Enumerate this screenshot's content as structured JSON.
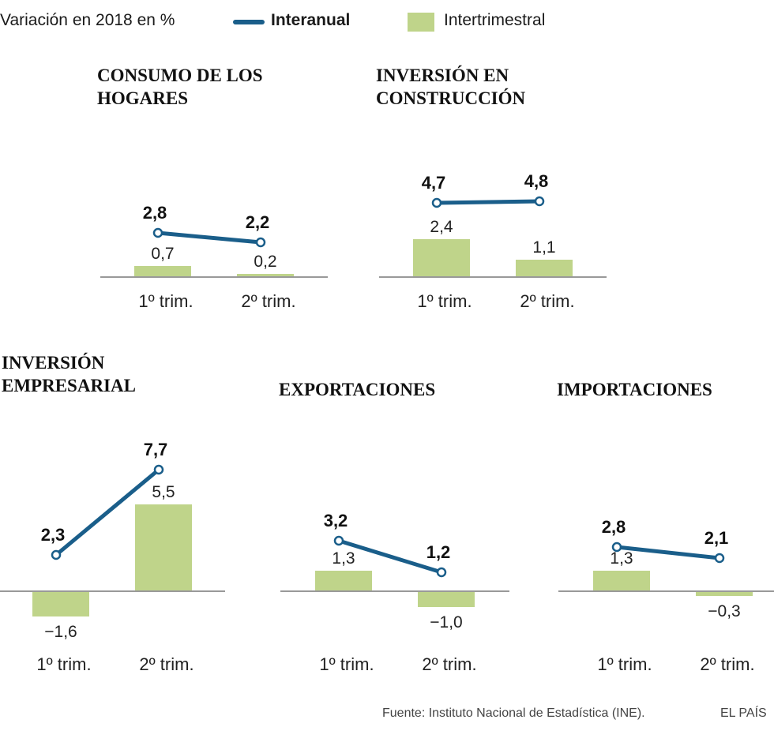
{
  "subtitle": "Variación en 2018 en %",
  "legend": {
    "line_label": "Interanual",
    "bar_label": "Intertrimestral",
    "line_color": "#1a5e8a",
    "bar_color": "#bfd48a"
  },
  "footer": {
    "source": "Fuente: Instituto Nacional de Estadística (INE).",
    "brand": "EL PAÍS"
  },
  "chart_data": [
    {
      "type": "bar",
      "title": [
        "CONSUMO DE LOS",
        "HOGARES"
      ],
      "categories": [
        "1º trim.",
        "2º trim."
      ],
      "series": [
        {
          "name": "Interanual",
          "type": "line",
          "values": [
            2.8,
            2.2
          ],
          "labels": [
            "2,8",
            "2,2"
          ]
        },
        {
          "name": "Intertrimestral",
          "type": "bar",
          "values": [
            0.7,
            0.2
          ],
          "labels": [
            "0,7",
            "0,2"
          ]
        }
      ]
    },
    {
      "type": "bar",
      "title": [
        "INVERSIÓN EN",
        "CONSTRUCCIÓN"
      ],
      "categories": [
        "1º trim.",
        "2º trim."
      ],
      "series": [
        {
          "name": "Interanual",
          "type": "line",
          "values": [
            4.7,
            4.8
          ],
          "labels": [
            "4,7",
            "4,8"
          ]
        },
        {
          "name": "Intertrimestral",
          "type": "bar",
          "values": [
            2.4,
            1.1
          ],
          "labels": [
            "2,4",
            "1,1"
          ]
        }
      ]
    },
    {
      "type": "bar",
      "title": [
        "INVERSIÓN",
        "EMPRESARIAL"
      ],
      "categories": [
        "1º trim.",
        "2º trim."
      ],
      "series": [
        {
          "name": "Interanual",
          "type": "line",
          "values": [
            2.3,
            7.7
          ],
          "labels": [
            "2,3",
            "7,7"
          ]
        },
        {
          "name": "Intertrimestral",
          "type": "bar",
          "values": [
            -1.6,
            5.5
          ],
          "labels": [
            "−1,6",
            "5,5"
          ]
        }
      ]
    },
    {
      "type": "bar",
      "title": [
        "EXPORTACIONES"
      ],
      "categories": [
        "1º trim.",
        "2º trim."
      ],
      "series": [
        {
          "name": "Interanual",
          "type": "line",
          "values": [
            3.2,
            1.2
          ],
          "labels": [
            "3,2",
            "1,2"
          ]
        },
        {
          "name": "Intertrimestral",
          "type": "bar",
          "values": [
            1.3,
            -1.0
          ],
          "labels": [
            "1,3",
            "−1,0"
          ]
        }
      ]
    },
    {
      "type": "bar",
      "title": [
        "IMPORTACIONES"
      ],
      "categories": [
        "1º trim.",
        "2º trim."
      ],
      "series": [
        {
          "name": "Interanual",
          "type": "line",
          "values": [
            2.8,
            2.1
          ],
          "labels": [
            "2,8",
            "2,1"
          ]
        },
        {
          "name": "Intertrimestral",
          "type": "bar",
          "values": [
            1.3,
            -0.3
          ],
          "labels": [
            "1,3",
            "−0,3"
          ]
        }
      ]
    }
  ]
}
